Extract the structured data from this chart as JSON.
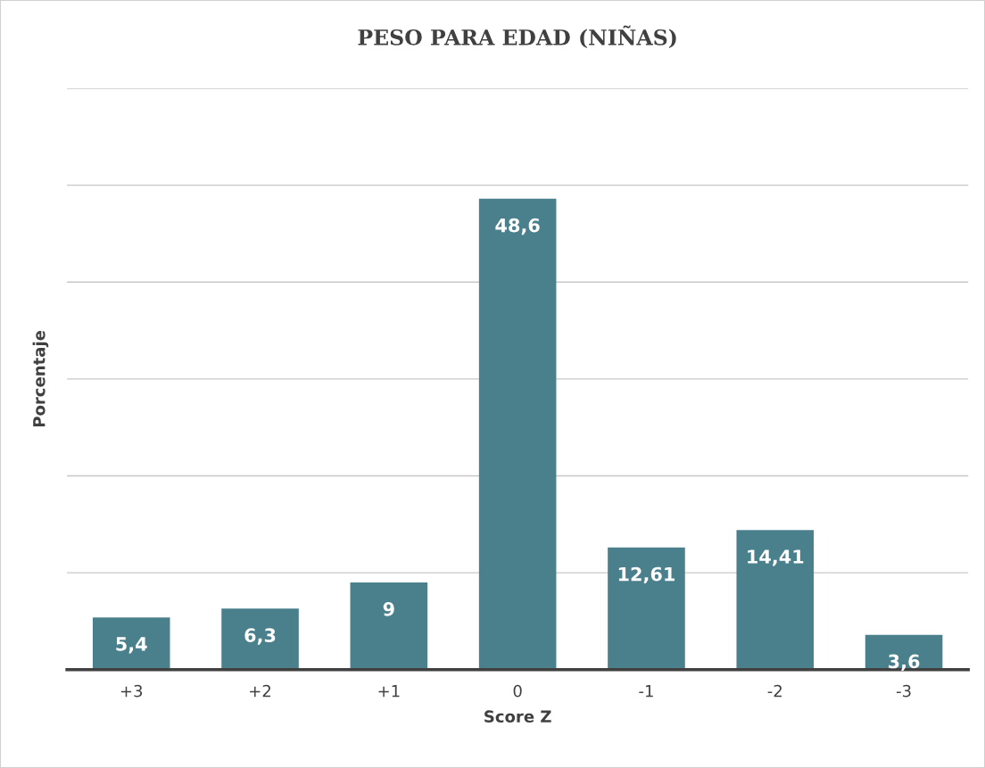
{
  "chart_data": {
    "type": "bar",
    "title": "PESO PARA EDAD (NIÑAS)",
    "xlabel": "Score Z",
    "ylabel": "Porcentaje",
    "categories": [
      "+3",
      "+2",
      "+1",
      "0",
      "-1",
      "-2",
      "-3"
    ],
    "values": [
      5.4,
      6.3,
      9,
      48.6,
      12.61,
      14.41,
      3.6
    ],
    "value_labels": [
      "5,4",
      "6,3",
      "9",
      "48,6",
      "12,61",
      "14,41",
      "3,6"
    ],
    "color": "#4a7f8c",
    "ylim": [
      0,
      60
    ],
    "yticks": [
      {
        "value": 0,
        "label": null
      },
      {
        "value": 10,
        "label": null
      },
      {
        "value": 20,
        "label": null
      },
      {
        "value": 30,
        "label": null
      },
      {
        "value": 40,
        "label": null
      },
      {
        "value": 50,
        "label": null
      },
      {
        "value": 60,
        "label": null
      }
    ],
    "grid": "y",
    "tick_labels": "x"
  }
}
